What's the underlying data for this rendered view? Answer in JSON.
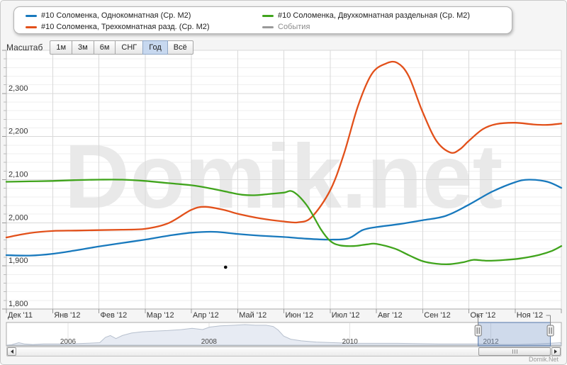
{
  "legend": {
    "items": [
      {
        "id": "one-room",
        "label": "#10 Соломенка, Однокомнатная (Ср. М2)",
        "color": "#1879bd",
        "muted": false
      },
      {
        "id": "three-room",
        "label": "#10 Соломенка, Трехкомнатная разд. (Ср. М2)",
        "color": "#e2501a",
        "muted": false
      },
      {
        "id": "two-room",
        "label": "#10 Соломенка, Двухкомнатная раздельная (Ср. М2)",
        "color": "#40a41c",
        "muted": false
      },
      {
        "id": "events",
        "label": "События",
        "color": "#999999",
        "muted": true
      }
    ]
  },
  "toolbar": {
    "label": "Масштаб",
    "buttons": [
      "1м",
      "3м",
      "6м",
      "СНГ",
      "Год",
      "Всё"
    ],
    "active": "Год"
  },
  "chart_data": {
    "type": "line",
    "title": "",
    "x_months": 12,
    "x_tick_labels": [
      "Дек '11",
      "Янв '12",
      "Фев '12",
      "Мар '12",
      "Апр '12",
      "Май '12",
      "Июн '12",
      "Июл '12",
      "Авг '12",
      "Сен '12",
      "Окт '12",
      "Ноя '12"
    ],
    "y_tick_labels": [
      "1,800",
      "1,900",
      "2,000",
      "2,100",
      "2,200",
      "2,300"
    ],
    "ylim": [
      1800,
      2400
    ],
    "y_major_step": 100,
    "y_minor_step": 20,
    "grid": true,
    "legend_position": "top",
    "plot_bg": "#ffffff",
    "watermark": "Domik.net",
    "watermark_color": "#e9e9e9",
    "series": [
      {
        "id": "one-room",
        "name": "#10 Соломенка, Однокомнатная (Ср. М2)",
        "color": "#1879bd",
        "points": [
          [
            0,
            1925
          ],
          [
            0.5,
            1924
          ],
          [
            1,
            1928
          ],
          [
            1.5,
            1936
          ],
          [
            2,
            1945
          ],
          [
            2.5,
            1953
          ],
          [
            3,
            1961
          ],
          [
            3.5,
            1970
          ],
          [
            4,
            1977
          ],
          [
            4.5,
            1979
          ],
          [
            5,
            1974
          ],
          [
            5.5,
            1970
          ],
          [
            6,
            1967
          ],
          [
            6.5,
            1963
          ],
          [
            7,
            1961
          ],
          [
            7.4,
            1964
          ],
          [
            7.7,
            1983
          ],
          [
            8,
            1990
          ],
          [
            8.5,
            1997
          ],
          [
            9,
            2006
          ],
          [
            9.5,
            2016
          ],
          [
            10,
            2042
          ],
          [
            10.5,
            2072
          ],
          [
            11,
            2094
          ],
          [
            11.3,
            2100
          ],
          [
            11.7,
            2095
          ],
          [
            12,
            2081
          ]
        ]
      },
      {
        "id": "three-room",
        "name": "#10 Соломенка, Трехкомнатная разд. (Ср. М2)",
        "color": "#e2501a",
        "points": [
          [
            0,
            1966
          ],
          [
            0.5,
            1976
          ],
          [
            1,
            1981
          ],
          [
            1.5,
            1982
          ],
          [
            2,
            1983
          ],
          [
            2.5,
            1984
          ],
          [
            3,
            1986
          ],
          [
            3.5,
            1999
          ],
          [
            4,
            2030
          ],
          [
            4.3,
            2037
          ],
          [
            4.7,
            2030
          ],
          [
            5,
            2021
          ],
          [
            5.5,
            2010
          ],
          [
            6,
            2003
          ],
          [
            6.3,
            2001
          ],
          [
            6.6,
            2013
          ],
          [
            7,
            2075
          ],
          [
            7.3,
            2160
          ],
          [
            7.6,
            2270
          ],
          [
            7.9,
            2345
          ],
          [
            8.2,
            2369
          ],
          [
            8.45,
            2371
          ],
          [
            8.7,
            2340
          ],
          [
            9,
            2257
          ],
          [
            9.3,
            2190
          ],
          [
            9.6,
            2163
          ],
          [
            9.8,
            2170
          ],
          [
            10,
            2190
          ],
          [
            10.3,
            2217
          ],
          [
            10.6,
            2229
          ],
          [
            11,
            2232
          ],
          [
            11.4,
            2228
          ],
          [
            11.7,
            2227
          ],
          [
            12,
            2230
          ]
        ]
      },
      {
        "id": "two-room",
        "name": "#10 Соломенка, Двухкомнатная раздельная (Ср. М2)",
        "color": "#40a41c",
        "points": [
          [
            0,
            2095
          ],
          [
            0.5,
            2096
          ],
          [
            1,
            2097
          ],
          [
            1.5,
            2099
          ],
          [
            2,
            2100
          ],
          [
            2.5,
            2100
          ],
          [
            3,
            2097
          ],
          [
            3.5,
            2092
          ],
          [
            4,
            2087
          ],
          [
            4.4,
            2080
          ],
          [
            4.8,
            2071
          ],
          [
            5.1,
            2065
          ],
          [
            5.4,
            2064
          ],
          [
            5.7,
            2067
          ],
          [
            6,
            2070
          ],
          [
            6.2,
            2072
          ],
          [
            6.5,
            2040
          ],
          [
            6.8,
            1985
          ],
          [
            7,
            1958
          ],
          [
            7.2,
            1948
          ],
          [
            7.5,
            1946
          ],
          [
            7.8,
            1950
          ],
          [
            8,
            1951
          ],
          [
            8.4,
            1940
          ],
          [
            8.7,
            1925
          ],
          [
            9,
            1911
          ],
          [
            9.3,
            1905
          ],
          [
            9.6,
            1904
          ],
          [
            9.9,
            1909
          ],
          [
            10.1,
            1914
          ],
          [
            10.4,
            1912
          ],
          [
            10.8,
            1914
          ],
          [
            11.1,
            1917
          ],
          [
            11.5,
            1925
          ],
          [
            11.8,
            1935
          ],
          [
            12,
            1946
          ]
        ]
      }
    ],
    "events": [
      {
        "x": 4.74,
        "value": 1897,
        "color": "#000000"
      }
    ]
  },
  "navigator": {
    "year_range": [
      2005.125,
      2013.0
    ],
    "year_ticks": [
      2006,
      2008,
      2010,
      2012
    ],
    "year_labels": [
      "2006",
      "2008",
      "2010",
      "2012"
    ],
    "selection": {
      "start": 2011.82,
      "end": 2012.845,
      "label": "2012"
    },
    "selection_fill": "rgba(135,163,205,0.4)",
    "selection_border": "#5577aa",
    "area_fill": "#e7ebf3",
    "area_line": "#b7c0ce",
    "area_profile": [
      [
        2005.13,
        0
      ],
      [
        2005.2,
        0.02
      ],
      [
        2005.3,
        0.12
      ],
      [
        2005.38,
        0.06
      ],
      [
        2005.5,
        0.03
      ],
      [
        2005.65,
        0.06
      ],
      [
        2006.0,
        0.06
      ],
      [
        2006.25,
        0.09
      ],
      [
        2006.45,
        0.12
      ],
      [
        2006.53,
        0.38
      ],
      [
        2006.6,
        0.47
      ],
      [
        2006.68,
        0.32
      ],
      [
        2006.77,
        0.47
      ],
      [
        2006.9,
        0.59
      ],
      [
        2007.05,
        0.65
      ],
      [
        2007.21,
        0.68
      ],
      [
        2007.41,
        0.71
      ],
      [
        2007.61,
        0.76
      ],
      [
        2007.76,
        0.82
      ],
      [
        2007.91,
        0.76
      ],
      [
        2008.01,
        0.88
      ],
      [
        2008.16,
        0.94
      ],
      [
        2008.36,
        0.97
      ],
      [
        2008.51,
        1.0
      ],
      [
        2008.66,
        0.97
      ],
      [
        2008.81,
        0.97
      ],
      [
        2008.91,
        0.91
      ],
      [
        2008.98,
        0.74
      ],
      [
        2009.06,
        0.44
      ],
      [
        2009.16,
        0.29
      ],
      [
        2009.31,
        0.21
      ],
      [
        2009.52,
        0.15
      ],
      [
        2009.77,
        0.12
      ],
      [
        2010.02,
        0.09
      ],
      [
        2010.67,
        0.09
      ],
      [
        2011.27,
        0.06
      ],
      [
        2011.82,
        0.06
      ],
      [
        2012.08,
        0.03
      ],
      [
        2012.38,
        0.03
      ],
      [
        2012.63,
        0.06
      ],
      [
        2012.83,
        0.09
      ],
      [
        2012.99,
        0.12
      ]
    ]
  },
  "footer": {
    "brand": "Domik.Net"
  }
}
